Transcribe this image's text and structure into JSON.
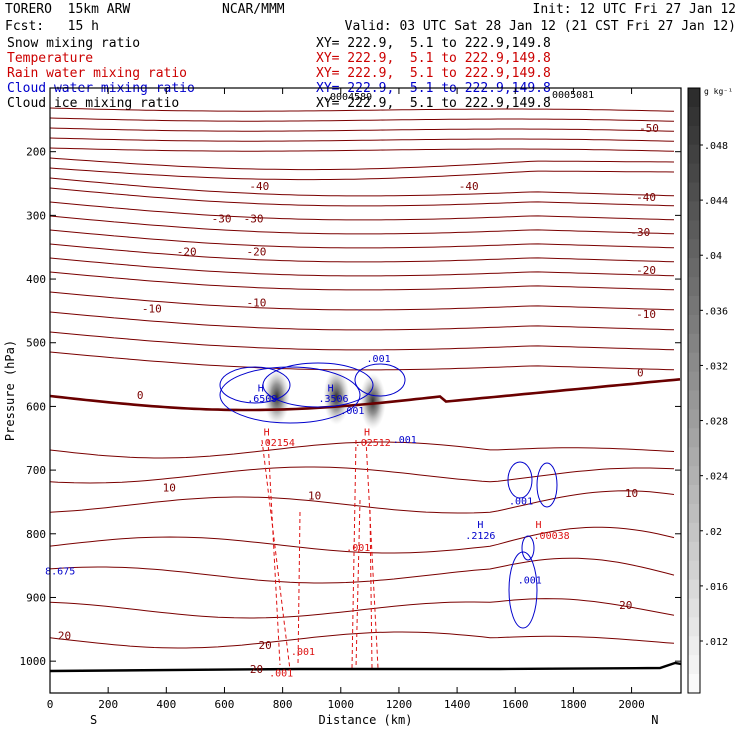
{
  "header": {
    "model": "TORERO  15km ARW",
    "center": "NCAR/MMM",
    "init": "Init: 12 UTC Fri 27 Jan 12",
    "fcst": "Fcst:   15 h",
    "valid": "Valid: 03 UTC Sat 28 Jan 12 (21 CST Fri 27 Jan 12)"
  },
  "fields": [
    {
      "name": "Snow mixing ratio",
      "xy": "XY= 222.9,  5.1 to 222.9,149.8",
      "color": "#000000"
    },
    {
      "name": "Temperature",
      "xy": "XY= 222.9,  5.1 to 222.9,149.8",
      "color": "#cc0000"
    },
    {
      "name": "Rain water mixing ratio",
      "xy": "XY= 222.9,  5.1 to 222.9,149.8",
      "color": "#cc0000"
    },
    {
      "name": "Cloud water mixing ratio",
      "xy": "XY= 222.9,  5.1 to 222.9,149.8",
      "color": "#0000cc"
    },
    {
      "name": "Cloud ice mixing ratio",
      "xy": "XY= 222.9,  5.1 to 222.9,149.8",
      "color": "#000000"
    }
  ],
  "overlap_labels": [
    ".0004589",
    ".0005081"
  ],
  "colors": {
    "temperature": "#7a0000",
    "rain": "#dd1111",
    "cloud_water": "#0000cc",
    "terrain": "#000000",
    "freezing": "#6a0000"
  },
  "chart_data": {
    "type": "contour-cross-section",
    "xlabel": "Distance (km)",
    "ylabel": "Pressure (hPa)",
    "xlim": [
      0,
      2170
    ],
    "ylim": [
      1050,
      100
    ],
    "x_ticks": [
      0,
      200,
      400,
      600,
      800,
      1000,
      1200,
      1400,
      1600,
      1800,
      2000
    ],
    "y_ticks": [
      200,
      300,
      400,
      500,
      600,
      700,
      800,
      900,
      1000
    ],
    "x_end_labels": {
      "left": "S",
      "right": "N"
    },
    "colorbar": {
      "unit": "g kg⁻¹",
      "tick_labels": [
        ".048",
        ".044",
        ".04",
        ".036",
        ".032",
        ".028",
        ".024",
        ".02",
        ".016",
        ".012"
      ],
      "levels": [
        0.008,
        0.048
      ]
    },
    "temperature_contours": [
      {
        "value": -50,
        "labels": [
          {
            "text": "-50",
            "x": 2060,
            "p": 163
          }
        ]
      },
      {
        "value": -40,
        "labels": [
          {
            "text": "-40",
            "x": 720,
            "p": 254
          },
          {
            "text": "-40",
            "x": 1440,
            "p": 254
          },
          {
            "text": "-40",
            "x": 2050,
            "p": 271
          }
        ]
      },
      {
        "value": -30,
        "labels": [
          {
            "text": "-30",
            "x": 590,
            "p": 305
          },
          {
            "text": "-30",
            "x": 700,
            "p": 305
          },
          {
            "text": "-30",
            "x": 2030,
            "p": 326
          }
        ]
      },
      {
        "value": -20,
        "labels": [
          {
            "text": "-20",
            "x": 470,
            "p": 357
          },
          {
            "text": "-20",
            "x": 710,
            "p": 357
          },
          {
            "text": "-20",
            "x": 2050,
            "p": 386
          }
        ]
      },
      {
        "value": -10,
        "labels": [
          {
            "text": "-10",
            "x": 350,
            "p": 446
          },
          {
            "text": "-10",
            "x": 710,
            "p": 437
          },
          {
            "text": "-10",
            "x": 2050,
            "p": 455
          }
        ]
      },
      {
        "value": 0,
        "labels": [
          {
            "text": "0",
            "x": 310,
            "p": 582
          },
          {
            "text": "0",
            "x": 2030,
            "p": 547
          }
        ]
      },
      {
        "value": 10,
        "labels": [
          {
            "text": "10",
            "x": 410,
            "p": 727
          },
          {
            "text": "10",
            "x": 910,
            "p": 740
          },
          {
            "text": "10",
            "x": 2000,
            "p": 736
          }
        ]
      },
      {
        "value": 20,
        "labels": [
          {
            "text": "20",
            "x": 50,
            "p": 960
          },
          {
            "text": "20",
            "x": 710,
            "p": 1012
          },
          {
            "text": "20",
            "x": 740,
            "p": 975
          },
          {
            "text": "20",
            "x": 1980,
            "p": 912
          }
        ]
      }
    ],
    "cloud_water_labels": [
      {
        "text": "H",
        "x": 725,
        "p": 570
      },
      {
        "text": ".6509",
        "x": 730,
        "p": 587
      },
      {
        "text": "H",
        "x": 965,
        "p": 570
      },
      {
        "text": ".3506",
        "x": 975,
        "p": 587
      },
      {
        "text": ".001",
        "x": 1130,
        "p": 524
      },
      {
        "text": ".001",
        "x": 1040,
        "p": 606
      },
      {
        "text": ".001",
        "x": 1220,
        "p": 651
      },
      {
        "text": ".001",
        "x": 1620,
        "p": 748
      },
      {
        "text": "H",
        "x": 1480,
        "p": 785
      },
      {
        "text": ".2126",
        "x": 1480,
        "p": 802
      },
      {
        "text": ".001",
        "x": 1650,
        "p": 872
      },
      {
        "text": "8.675",
        "x": 35,
        "p": 858
      }
    ],
    "rain_labels": [
      {
        "text": "H",
        "x": 745,
        "p": 639
      },
      {
        "text": ".02154",
        "x": 780,
        "p": 656
      },
      {
        "text": "H",
        "x": 1090,
        "p": 639
      },
      {
        "text": ".02512",
        "x": 1110,
        "p": 656
      },
      {
        "text": "H",
        "x": 1680,
        "p": 785
      },
      {
        "text": ".00038",
        "x": 1725,
        "p": 802
      },
      {
        "text": ".001",
        "x": 1060,
        "p": 821
      },
      {
        "text": ".001",
        "x": 870,
        "p": 984
      },
      {
        "text": ".001",
        "x": 795,
        "p": 1018
      }
    ],
    "snow_maxima": [
      {
        "x": 780,
        "p": 585,
        "value": 0.048
      },
      {
        "x": 985,
        "p": 585,
        "value": 0.046
      },
      {
        "x": 1110,
        "p": 592,
        "value": 0.042
      }
    ]
  }
}
